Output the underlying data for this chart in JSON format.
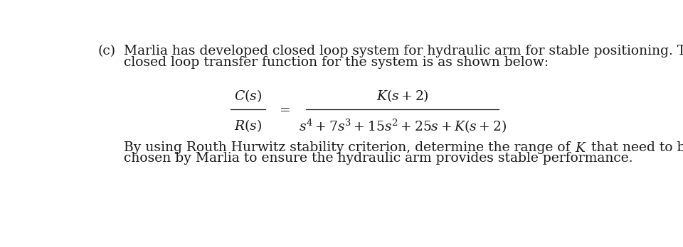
{
  "background_color": "#ffffff",
  "label_c": "(c)",
  "para1_line1": "Marlia has developed closed loop system for hydraulic arm for stable positioning. The",
  "para1_line2": "closed loop transfer function for the system is as shown below:",
  "para2_line1_prefix": "By using Routh Hurwitz stability criterion, determine the range of ",
  "para2_line1_suffix": " that need to be",
  "para2_line2": "chosen by Marlia to ensure the hydraulic arm provides stable performance.",
  "font_size_body": 13.5,
  "font_size_math": 13.5,
  "text_color": "#1a1a1a"
}
